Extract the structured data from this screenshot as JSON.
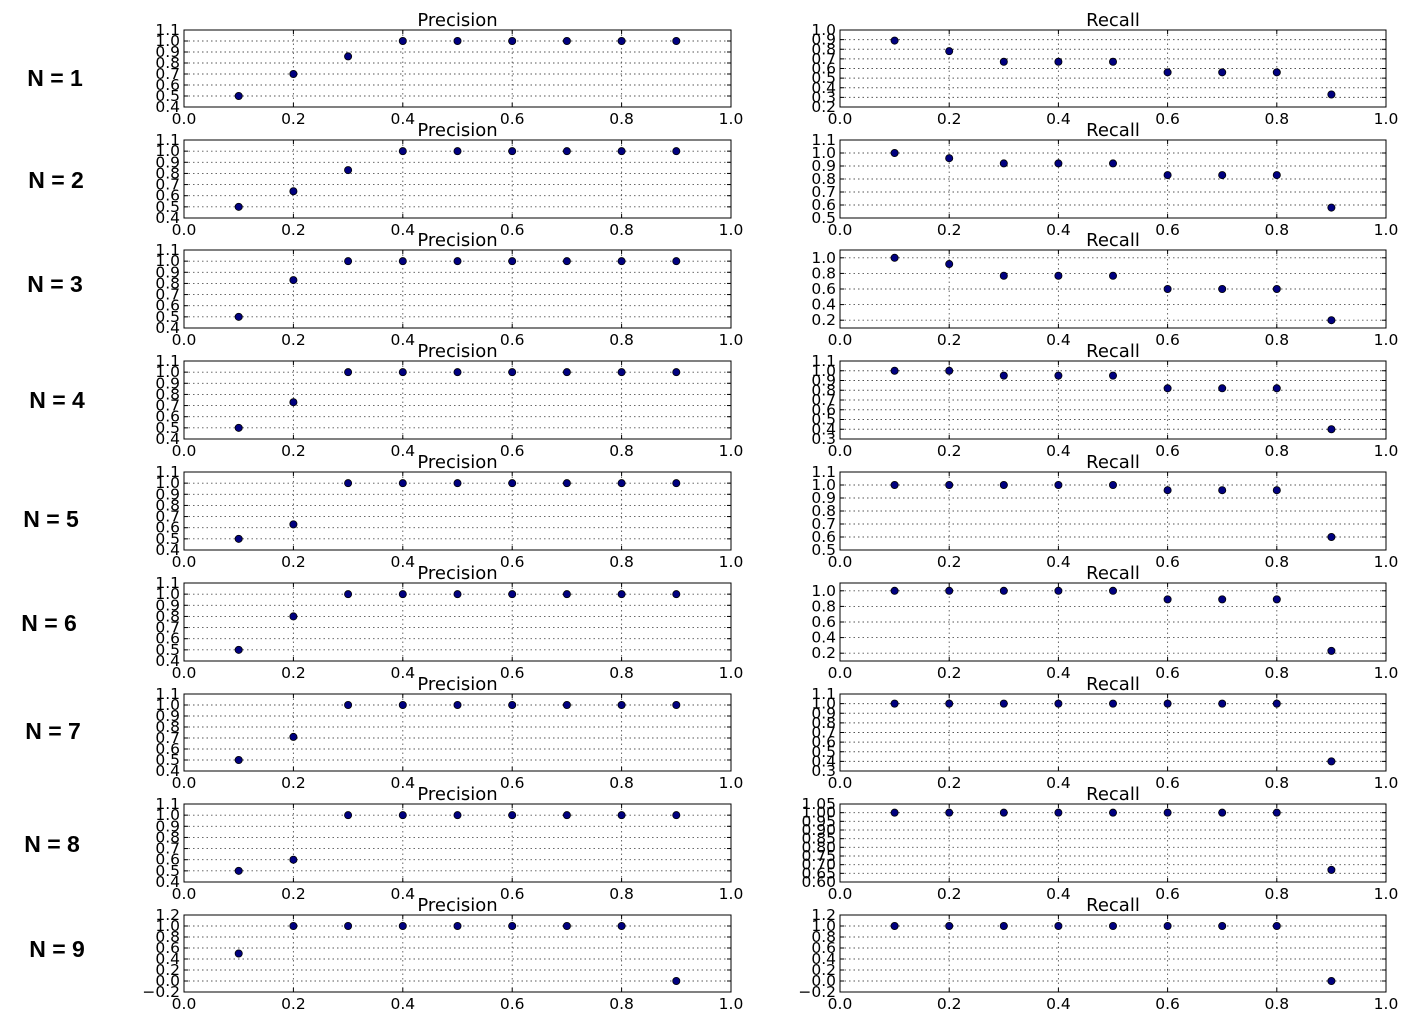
{
  "row_labels": [
    "N = 1",
    "N = 2",
    "N = 3",
    "N = 4",
    "N = 5",
    "N = 6",
    "N = 7",
    "N = 8",
    "N = 9"
  ],
  "chart_data": [
    {
      "type": "scatter",
      "row": 0,
      "col": 0,
      "title": "Precision",
      "x": [
        0.1,
        0.2,
        0.3,
        0.4,
        0.5,
        0.6,
        0.7,
        0.8,
        0.9
      ],
      "y": [
        0.5,
        0.7,
        0.86,
        1.0,
        1.0,
        1.0,
        1.0,
        1.0,
        1.0
      ],
      "xlim": [
        0.0,
        1.0
      ],
      "ylim": [
        0.4,
        1.1
      ],
      "xticks": [
        "0.0",
        "0.2",
        "0.4",
        "0.6",
        "0.8",
        "1.0"
      ],
      "yticks": [
        "0.4",
        "0.5",
        "0.6",
        "0.7",
        "0.8",
        "0.9",
        "1.0",
        "1.1"
      ],
      "grid": true
    },
    {
      "type": "scatter",
      "row": 0,
      "col": 1,
      "title": "Recall",
      "x": [
        0.1,
        0.2,
        0.3,
        0.4,
        0.5,
        0.6,
        0.7,
        0.8,
        0.9
      ],
      "y": [
        0.89,
        0.78,
        0.67,
        0.67,
        0.67,
        0.56,
        0.56,
        0.56,
        0.33
      ],
      "xlim": [
        0.0,
        1.0
      ],
      "ylim": [
        0.2,
        1.0
      ],
      "xticks": [
        "0.0",
        "0.2",
        "0.4",
        "0.6",
        "0.8",
        "1.0"
      ],
      "yticks": [
        "0.2",
        "0.3",
        "0.4",
        "0.5",
        "0.6",
        "0.7",
        "0.8",
        "0.9",
        "1.0"
      ],
      "grid": true
    },
    {
      "type": "scatter",
      "row": 1,
      "col": 0,
      "title": "Precision",
      "x": [
        0.1,
        0.2,
        0.3,
        0.4,
        0.5,
        0.6,
        0.7,
        0.8,
        0.9
      ],
      "y": [
        0.5,
        0.64,
        0.83,
        1.0,
        1.0,
        1.0,
        1.0,
        1.0,
        1.0
      ],
      "xlim": [
        0.0,
        1.0
      ],
      "ylim": [
        0.4,
        1.1
      ],
      "xticks": [
        "0.0",
        "0.2",
        "0.4",
        "0.6",
        "0.8",
        "1.0"
      ],
      "yticks": [
        "0.4",
        "0.5",
        "0.6",
        "0.7",
        "0.8",
        "0.9",
        "1.0",
        "1.1"
      ],
      "grid": true
    },
    {
      "type": "scatter",
      "row": 1,
      "col": 1,
      "title": "Recall",
      "x": [
        0.1,
        0.2,
        0.3,
        0.4,
        0.5,
        0.6,
        0.7,
        0.8,
        0.9
      ],
      "y": [
        1.0,
        0.96,
        0.92,
        0.92,
        0.92,
        0.83,
        0.83,
        0.83,
        0.58
      ],
      "xlim": [
        0.0,
        1.0
      ],
      "ylim": [
        0.5,
        1.1
      ],
      "xticks": [
        "0.0",
        "0.2",
        "0.4",
        "0.6",
        "0.8",
        "1.0"
      ],
      "yticks": [
        "0.5",
        "0.6",
        "0.7",
        "0.8",
        "0.9",
        "1.0",
        "1.1"
      ],
      "grid": true
    },
    {
      "type": "scatter",
      "row": 2,
      "col": 0,
      "title": "Precision",
      "x": [
        0.1,
        0.2,
        0.3,
        0.4,
        0.5,
        0.6,
        0.7,
        0.8,
        0.9
      ],
      "y": [
        0.5,
        0.83,
        1.0,
        1.0,
        1.0,
        1.0,
        1.0,
        1.0,
        1.0
      ],
      "xlim": [
        0.0,
        1.0
      ],
      "ylim": [
        0.4,
        1.1
      ],
      "xticks": [
        "0.0",
        "0.2",
        "0.4",
        "0.6",
        "0.8",
        "1.0"
      ],
      "yticks": [
        "0.4",
        "0.5",
        "0.6",
        "0.7",
        "0.8",
        "0.9",
        "1.0",
        "1.1"
      ],
      "grid": true
    },
    {
      "type": "scatter",
      "row": 2,
      "col": 1,
      "title": "Recall",
      "x": [
        0.1,
        0.2,
        0.3,
        0.4,
        0.5,
        0.6,
        0.7,
        0.8,
        0.9
      ],
      "y": [
        1.0,
        0.92,
        0.77,
        0.77,
        0.77,
        0.6,
        0.6,
        0.6,
        0.2
      ],
      "xlim": [
        0.0,
        1.0
      ],
      "ylim": [
        0.1,
        1.1
      ],
      "xticks": [
        "0.0",
        "0.2",
        "0.4",
        "0.6",
        "0.8",
        "1.0"
      ],
      "yticks": [
        "0.2",
        "0.4",
        "0.6",
        "0.8",
        "1.0"
      ],
      "grid": true
    },
    {
      "type": "scatter",
      "row": 3,
      "col": 0,
      "title": "Precision",
      "x": [
        0.1,
        0.2,
        0.3,
        0.4,
        0.5,
        0.6,
        0.7,
        0.8,
        0.9
      ],
      "y": [
        0.5,
        0.73,
        1.0,
        1.0,
        1.0,
        1.0,
        1.0,
        1.0,
        1.0
      ],
      "xlim": [
        0.0,
        1.0
      ],
      "ylim": [
        0.4,
        1.1
      ],
      "xticks": [
        "0.0",
        "0.2",
        "0.4",
        "0.6",
        "0.8",
        "1.0"
      ],
      "yticks": [
        "0.4",
        "0.5",
        "0.6",
        "0.7",
        "0.8",
        "0.9",
        "1.0",
        "1.1"
      ],
      "grid": true
    },
    {
      "type": "scatter",
      "row": 3,
      "col": 1,
      "title": "Recall",
      "x": [
        0.1,
        0.2,
        0.3,
        0.4,
        0.5,
        0.6,
        0.7,
        0.8,
        0.9
      ],
      "y": [
        1.0,
        1.0,
        0.95,
        0.95,
        0.95,
        0.82,
        0.82,
        0.82,
        0.4
      ],
      "xlim": [
        0.0,
        1.0
      ],
      "ylim": [
        0.3,
        1.1
      ],
      "xticks": [
        "0.0",
        "0.2",
        "0.4",
        "0.6",
        "0.8",
        "1.0"
      ],
      "yticks": [
        "0.3",
        "0.4",
        "0.5",
        "0.6",
        "0.7",
        "0.8",
        "0.9",
        "1.0",
        "1.1"
      ],
      "grid": true
    },
    {
      "type": "scatter",
      "row": 4,
      "col": 0,
      "title": "Precision",
      "x": [
        0.1,
        0.2,
        0.3,
        0.4,
        0.5,
        0.6,
        0.7,
        0.8,
        0.9
      ],
      "y": [
        0.5,
        0.63,
        1.0,
        1.0,
        1.0,
        1.0,
        1.0,
        1.0,
        1.0
      ],
      "xlim": [
        0.0,
        1.0
      ],
      "ylim": [
        0.4,
        1.1
      ],
      "xticks": [
        "0.0",
        "0.2",
        "0.4",
        "0.6",
        "0.8",
        "1.0"
      ],
      "yticks": [
        "0.4",
        "0.5",
        "0.6",
        "0.7",
        "0.8",
        "0.9",
        "1.0",
        "1.1"
      ],
      "grid": true
    },
    {
      "type": "scatter",
      "row": 4,
      "col": 1,
      "title": "Recall",
      "x": [
        0.1,
        0.2,
        0.3,
        0.4,
        0.5,
        0.6,
        0.7,
        0.8,
        0.9
      ],
      "y": [
        1.0,
        1.0,
        1.0,
        1.0,
        1.0,
        0.96,
        0.96,
        0.96,
        0.6
      ],
      "xlim": [
        0.0,
        1.0
      ],
      "ylim": [
        0.5,
        1.1
      ],
      "xticks": [
        "0.0",
        "0.2",
        "0.4",
        "0.6",
        "0.8",
        "1.0"
      ],
      "yticks": [
        "0.5",
        "0.6",
        "0.7",
        "0.8",
        "0.9",
        "1.0",
        "1.1"
      ],
      "grid": true
    },
    {
      "type": "scatter",
      "row": 5,
      "col": 0,
      "title": "Precision",
      "x": [
        0.1,
        0.2,
        0.3,
        0.4,
        0.5,
        0.6,
        0.7,
        0.8,
        0.9
      ],
      "y": [
        0.5,
        0.8,
        1.0,
        1.0,
        1.0,
        1.0,
        1.0,
        1.0,
        1.0
      ],
      "xlim": [
        0.0,
        1.0
      ],
      "ylim": [
        0.4,
        1.1
      ],
      "xticks": [
        "0.0",
        "0.2",
        "0.4",
        "0.6",
        "0.8",
        "1.0"
      ],
      "yticks": [
        "0.4",
        "0.5",
        "0.6",
        "0.7",
        "0.8",
        "0.9",
        "1.0",
        "1.1"
      ],
      "grid": true
    },
    {
      "type": "scatter",
      "row": 5,
      "col": 1,
      "title": "Recall",
      "x": [
        0.1,
        0.2,
        0.3,
        0.4,
        0.5,
        0.6,
        0.7,
        0.8,
        0.9
      ],
      "y": [
        1.0,
        1.0,
        1.0,
        1.0,
        1.0,
        0.89,
        0.89,
        0.89,
        0.23
      ],
      "xlim": [
        0.0,
        1.0
      ],
      "ylim": [
        0.1,
        1.1
      ],
      "xticks": [
        "0.0",
        "0.2",
        "0.4",
        "0.6",
        "0.8",
        "1.0"
      ],
      "yticks": [
        "0.2",
        "0.4",
        "0.6",
        "0.8",
        "1.0"
      ],
      "grid": true
    },
    {
      "type": "scatter",
      "row": 6,
      "col": 0,
      "title": "Precision",
      "x": [
        0.1,
        0.2,
        0.3,
        0.4,
        0.5,
        0.6,
        0.7,
        0.8,
        0.9
      ],
      "y": [
        0.5,
        0.71,
        1.0,
        1.0,
        1.0,
        1.0,
        1.0,
        1.0,
        1.0
      ],
      "xlim": [
        0.0,
        1.0
      ],
      "ylim": [
        0.4,
        1.1
      ],
      "xticks": [
        "0.0",
        "0.2",
        "0.4",
        "0.6",
        "0.8",
        "1.0"
      ],
      "yticks": [
        "0.4",
        "0.5",
        "0.6",
        "0.7",
        "0.8",
        "0.9",
        "1.0",
        "1.1"
      ],
      "grid": true
    },
    {
      "type": "scatter",
      "row": 6,
      "col": 1,
      "title": "Recall",
      "x": [
        0.1,
        0.2,
        0.3,
        0.4,
        0.5,
        0.6,
        0.7,
        0.8,
        0.9
      ],
      "y": [
        1.0,
        1.0,
        1.0,
        1.0,
        1.0,
        1.0,
        1.0,
        1.0,
        0.4
      ],
      "xlim": [
        0.0,
        1.0
      ],
      "ylim": [
        0.3,
        1.1
      ],
      "xticks": [
        "0.0",
        "0.2",
        "0.4",
        "0.6",
        "0.8",
        "1.0"
      ],
      "yticks": [
        "0.3",
        "0.4",
        "0.5",
        "0.6",
        "0.7",
        "0.8",
        "0.9",
        "1.0",
        "1.1"
      ],
      "grid": true
    },
    {
      "type": "scatter",
      "row": 7,
      "col": 0,
      "title": "Precision",
      "x": [
        0.1,
        0.2,
        0.3,
        0.4,
        0.5,
        0.6,
        0.7,
        0.8,
        0.9
      ],
      "y": [
        0.5,
        0.6,
        1.0,
        1.0,
        1.0,
        1.0,
        1.0,
        1.0,
        1.0
      ],
      "xlim": [
        0.0,
        1.0
      ],
      "ylim": [
        0.4,
        1.1
      ],
      "xticks": [
        "0.0",
        "0.2",
        "0.4",
        "0.6",
        "0.8",
        "1.0"
      ],
      "yticks": [
        "0.4",
        "0.5",
        "0.6",
        "0.7",
        "0.8",
        "0.9",
        "1.0",
        "1.1"
      ],
      "grid": true
    },
    {
      "type": "scatter",
      "row": 7,
      "col": 1,
      "title": "Recall",
      "x": [
        0.1,
        0.2,
        0.3,
        0.4,
        0.5,
        0.6,
        0.7,
        0.8,
        0.9
      ],
      "y": [
        1.0,
        1.0,
        1.0,
        1.0,
        1.0,
        1.0,
        1.0,
        1.0,
        0.67
      ],
      "xlim": [
        0.0,
        1.0
      ],
      "ylim": [
        0.6,
        1.05
      ],
      "xticks": [
        "0.0",
        "0.2",
        "0.4",
        "0.6",
        "0.8",
        "1.0"
      ],
      "yticks": [
        "0.60",
        "0.65",
        "0.70",
        "0.75",
        "0.80",
        "0.85",
        "0.90",
        "0.95",
        "1.00",
        "1.05"
      ],
      "grid": true
    },
    {
      "type": "scatter",
      "row": 8,
      "col": 0,
      "title": "Precision",
      "x": [
        0.1,
        0.2,
        0.3,
        0.4,
        0.5,
        0.6,
        0.7,
        0.8,
        0.9
      ],
      "y": [
        0.5,
        1.0,
        1.0,
        1.0,
        1.0,
        1.0,
        1.0,
        1.0,
        0.0
      ],
      "xlim": [
        0.0,
        1.0
      ],
      "ylim": [
        -0.2,
        1.2
      ],
      "xticks": [
        "0.0",
        "0.2",
        "0.4",
        "0.6",
        "0.8",
        "1.0"
      ],
      "yticks": [
        "−0.2",
        "0.0",
        "0.2",
        "0.4",
        "0.6",
        "0.8",
        "1.0",
        "1.2"
      ],
      "grid": true
    },
    {
      "type": "scatter",
      "row": 8,
      "col": 1,
      "title": "Recall",
      "x": [
        0.1,
        0.2,
        0.3,
        0.4,
        0.5,
        0.6,
        0.7,
        0.8,
        0.9
      ],
      "y": [
        1.0,
        1.0,
        1.0,
        1.0,
        1.0,
        1.0,
        1.0,
        1.0,
        0.0
      ],
      "xlim": [
        0.0,
        1.0
      ],
      "ylim": [
        -0.2,
        1.2
      ],
      "xticks": [
        "0.0",
        "0.2",
        "0.4",
        "0.6",
        "0.8",
        "1.0"
      ],
      "yticks": [
        "−0.2",
        "0.0",
        "0.2",
        "0.4",
        "0.6",
        "0.8",
        "1.0",
        "1.2"
      ],
      "grid": true
    }
  ]
}
